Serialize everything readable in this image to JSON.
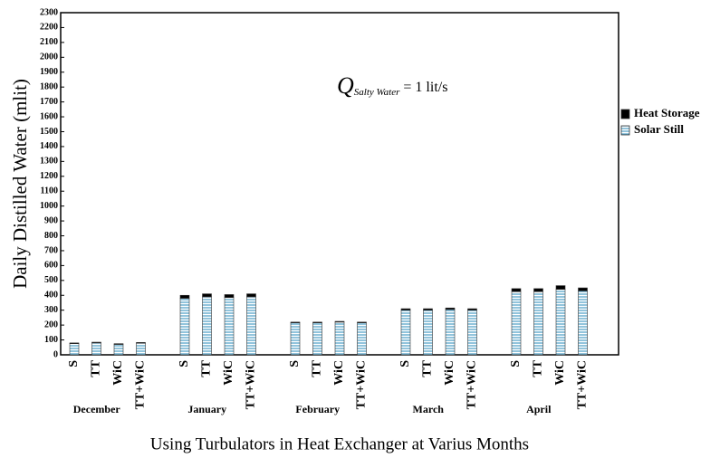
{
  "chart_data": {
    "type": "stacked_bar",
    "ylabel": "Daily Distilled Water (mlit)",
    "xlabel": "Using Turbulators in Heat Exchanger at Varius Months",
    "annotation": {
      "symbol": "Q",
      "subscript": "Salty Water",
      "text": "= 1 lit/s"
    },
    "groups": [
      "December",
      "January",
      "February",
      "March",
      "April"
    ],
    "categories": [
      "S",
      "TT",
      "WiC",
      "TT+WiC",
      "S",
      "TT",
      "WiC",
      "TT+WiC",
      "S",
      "TT",
      "WiC",
      "TT+WiC",
      "S",
      "TT",
      "WiC",
      "TT+WiC",
      "S",
      "TT",
      "WiC",
      "TT+WiC"
    ],
    "series": [
      {
        "name": "Solar Still",
        "color": "#4a9cc4",
        "values": [
          75,
          80,
          70,
          78,
          380,
          390,
          385,
          390,
          215,
          215,
          220,
          215,
          300,
          300,
          305,
          300,
          425,
          425,
          440,
          430
        ]
      },
      {
        "name": "Heat Storage",
        "color": "#000000",
        "values": [
          5,
          5,
          5,
          5,
          20,
          20,
          20,
          20,
          5,
          5,
          5,
          5,
          10,
          10,
          10,
          10,
          20,
          20,
          25,
          20
        ]
      }
    ],
    "ylim": [
      0,
      2300
    ],
    "yticks": [
      0,
      100,
      200,
      300,
      400,
      500,
      600,
      700,
      800,
      900,
      1000,
      1100,
      1200,
      1300,
      1400,
      1500,
      1600,
      1700,
      1800,
      1900,
      2000,
      2100,
      2200,
      2300
    ],
    "legend": "right"
  }
}
